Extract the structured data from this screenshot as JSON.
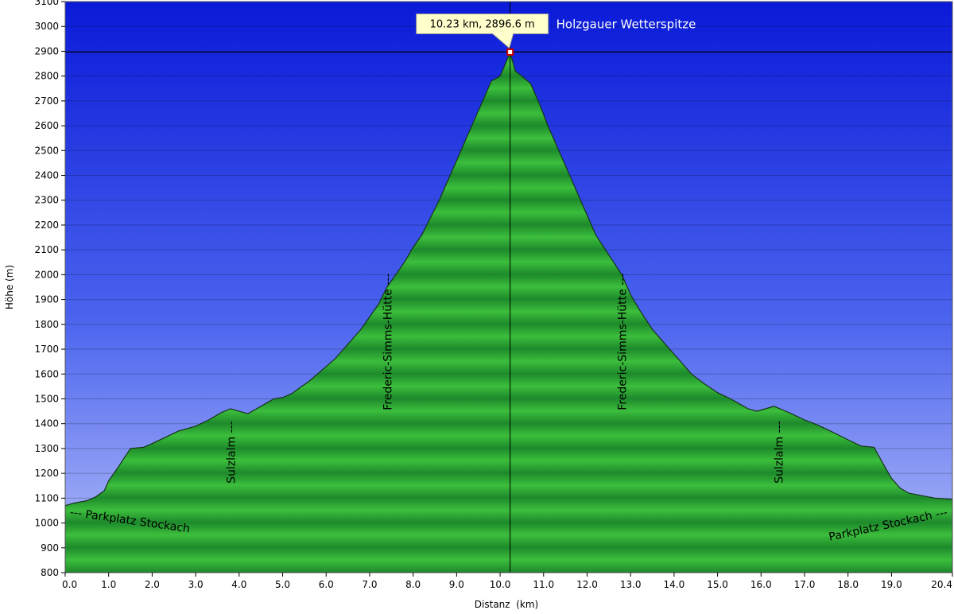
{
  "chart_data": {
    "type": "area",
    "xlabel": "Distanz  (km)",
    "ylabel": "Höhe (m)",
    "xlim": [
      0,
      20.4
    ],
    "ylim": [
      800,
      3100
    ],
    "x_ticks": [
      "0.0",
      "1.0",
      "2.0",
      "3.0",
      "4.0",
      "5.0",
      "6.0",
      "7.0",
      "8.0",
      "9.0",
      "10.0",
      "11.0",
      "12.0",
      "13.0",
      "14.0",
      "15.0",
      "16.0",
      "17.0",
      "18.0",
      "19.0",
      "20.4"
    ],
    "y_ticks": [
      "800",
      "900",
      "1000",
      "1100",
      "1200",
      "1300",
      "1400",
      "1500",
      "1600",
      "1700",
      "1800",
      "1900",
      "2000",
      "2100",
      "2200",
      "2300",
      "2400",
      "2500",
      "2600",
      "2700",
      "2800",
      "2900",
      "3000",
      "3100"
    ],
    "grid": true,
    "colors": {
      "sky_top": "#0a1ad8",
      "sky_bottom": "#a7b3f7",
      "fill_light": "#3cbe3c",
      "fill_dark": "#1c8a2a",
      "outline": "#1a3a1a"
    },
    "series": [
      {
        "x": [
          0.0,
          0.2,
          0.5,
          0.7,
          0.9,
          1.0,
          1.2,
          1.5,
          1.8,
          2.0,
          2.3,
          2.6,
          3.0,
          3.3,
          3.6,
          3.8,
          4.0,
          4.2,
          4.4,
          4.6,
          4.8,
          5.0,
          5.2,
          5.4,
          5.6,
          5.8,
          6.0,
          6.2,
          6.4,
          6.6,
          6.8,
          7.0,
          7.2,
          7.4,
          7.6,
          7.8,
          8.0,
          8.2,
          8.4,
          8.6,
          8.8,
          9.0,
          9.2,
          9.4,
          9.6,
          9.8,
          10.0,
          10.1,
          10.23,
          10.35,
          10.5,
          10.7,
          10.9,
          11.1,
          11.3,
          11.6,
          11.9,
          12.2,
          12.5,
          12.8,
          13.0,
          13.2,
          13.5,
          13.8,
          14.1,
          14.4,
          14.7,
          15.0,
          15.3,
          15.5,
          15.7,
          15.9,
          16.1,
          16.3,
          16.5,
          16.7,
          17.0,
          17.3,
          17.6,
          18.0,
          18.3,
          18.6,
          18.8,
          19.0,
          19.2,
          19.4,
          19.7,
          20.0,
          20.4
        ],
        "y": [
          1070,
          1080,
          1090,
          1105,
          1130,
          1170,
          1220,
          1300,
          1305,
          1320,
          1345,
          1370,
          1390,
          1415,
          1445,
          1460,
          1450,
          1440,
          1460,
          1480,
          1500,
          1505,
          1520,
          1545,
          1570,
          1600,
          1630,
          1660,
          1700,
          1740,
          1780,
          1830,
          1880,
          1950,
          2000,
          2050,
          2110,
          2160,
          2230,
          2300,
          2380,
          2460,
          2540,
          2620,
          2700,
          2780,
          2800,
          2840,
          2896.6,
          2820,
          2800,
          2770,
          2690,
          2600,
          2520,
          2400,
          2280,
          2160,
          2080,
          2000,
          1920,
          1860,
          1780,
          1720,
          1660,
          1600,
          1560,
          1525,
          1500,
          1480,
          1460,
          1450,
          1460,
          1470,
          1455,
          1440,
          1415,
          1395,
          1370,
          1335,
          1310,
          1305,
          1240,
          1180,
          1140,
          1120,
          1110,
          1100,
          1095
        ]
      }
    ],
    "annotations": [
      {
        "text": "--- Parkplatz Stockach",
        "x": 0.1,
        "y": 1030,
        "rotate": 8
      },
      {
        "text": "Sulzlalm ---",
        "x": 3.9,
        "y": 1285,
        "rotate": -90
      },
      {
        "text": "Frederic-Simms-Hütte ---",
        "x": 7.5,
        "y": 1730,
        "rotate": -90
      },
      {
        "text": "Frederic-Simms-Hütte ---",
        "x": 12.9,
        "y": 1730,
        "rotate": -90
      },
      {
        "text": "Sulzlalm ---",
        "x": 16.5,
        "y": 1285,
        "rotate": -90
      },
      {
        "text": "Parkplatz Stockach ---",
        "x": 20.3,
        "y": 1030,
        "rotate": -12
      }
    ],
    "marker": {
      "x": 10.23,
      "y": 2896.6,
      "tooltip": "10.23 km, 2896.6 m",
      "label": "Holzgauer Wetterspitze"
    }
  }
}
